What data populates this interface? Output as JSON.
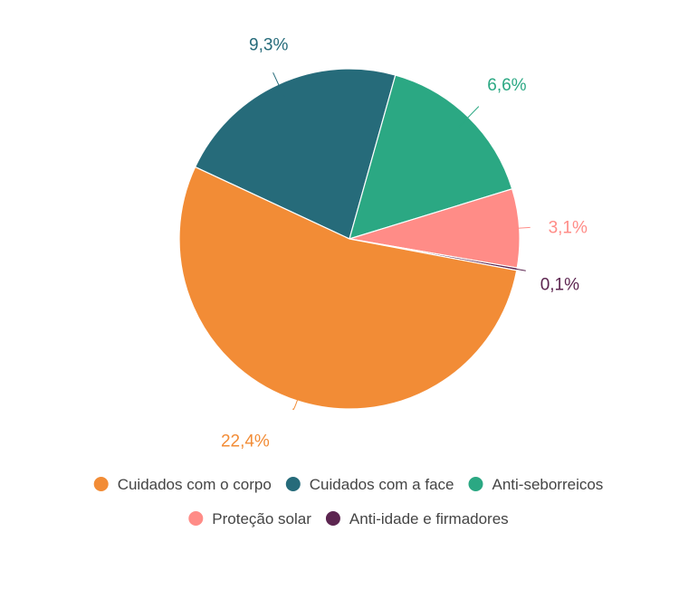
{
  "chart_data": {
    "type": "pie",
    "title": "",
    "slices": [
      {
        "name": "Cuidados com o corpo",
        "value": 22.4,
        "label": "22,4%",
        "color": "#f28c36"
      },
      {
        "name": "Cuidados com a face",
        "value": 9.3,
        "label": "9,3%",
        "color": "#266b7a"
      },
      {
        "name": "Anti-seborreicos",
        "value": 6.6,
        "label": "6,6%",
        "color": "#2ba883"
      },
      {
        "name": "Proteção solar",
        "value": 3.1,
        "label": "3,1%",
        "color": "#ff8c87"
      },
      {
        "name": "Anti-idade e firmadores",
        "value": 0.1,
        "label": "0,1%",
        "color": "#5c2550"
      }
    ],
    "legend_position": "bottom",
    "data_labels": "outside-with-leader-lines"
  }
}
